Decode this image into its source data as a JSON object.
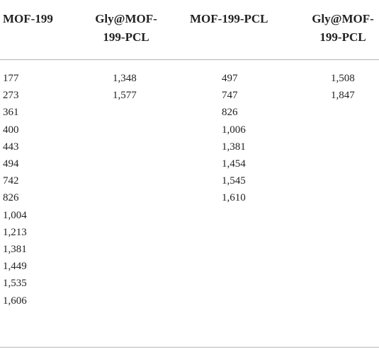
{
  "table": {
    "headers": [
      [
        "MOF-199"
      ],
      [
        "Gly@MOF-",
        "199-PCL"
      ],
      [
        "MOF-199-PCL"
      ],
      [
        "Gly@MOF-",
        "199-PCL"
      ]
    ],
    "rows": [
      [
        "177",
        "1,348",
        "497",
        "1,508"
      ],
      [
        "273",
        "1,577",
        "747",
        "1,847"
      ],
      [
        "361",
        "",
        "826",
        ""
      ],
      [
        "400",
        "",
        "1,006",
        ""
      ],
      [
        "443",
        "",
        "1,381",
        ""
      ],
      [
        "494",
        "",
        "1,454",
        ""
      ],
      [
        "742",
        "",
        "1,545",
        ""
      ],
      [
        "826",
        "",
        "1,610",
        ""
      ],
      [
        "1,004",
        "",
        "",
        ""
      ],
      [
        "1,213",
        "",
        "",
        ""
      ],
      [
        "1,381",
        "",
        "",
        ""
      ],
      [
        "1,449",
        "",
        "",
        ""
      ],
      [
        "1,535",
        "",
        "",
        ""
      ],
      [
        "1,606",
        "",
        "",
        ""
      ]
    ]
  }
}
